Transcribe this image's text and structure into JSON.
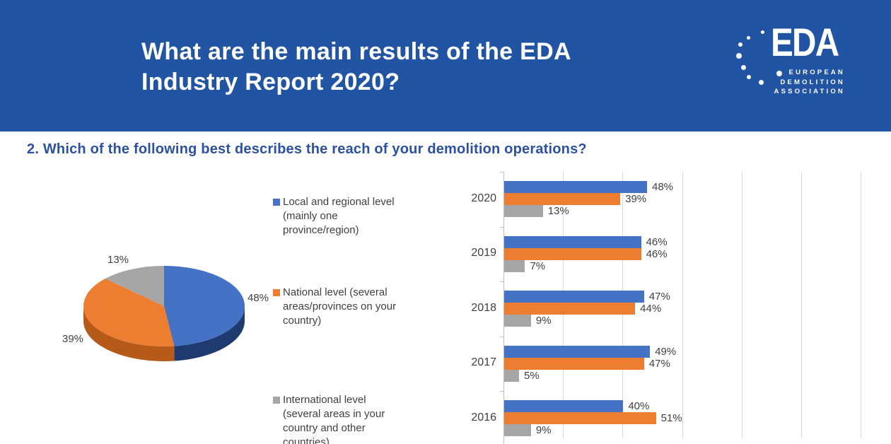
{
  "header": {
    "bg_color": "#2254A4",
    "title_lines": [
      "What are the main results of the EDA",
      "Industry Report 2020?"
    ],
    "logo": {
      "name": "EDA",
      "subtitle_lines": [
        "EUROPEAN",
        "DEMOLITION",
        "ASSOCIATION"
      ]
    }
  },
  "question": "2. Which of the following best describes the reach of your demolition operations?",
  "legend": {
    "items": [
      {
        "color": "#4472C4",
        "lines": [
          "Local and regional level",
          "(mainly one",
          "province/region)"
        ]
      },
      {
        "color": "#ED7D31",
        "lines": [
          "National level (several",
          "areas/provinces on your",
          "country)"
        ]
      },
      {
        "color": "#A6A6A6",
        "lines": [
          "International level",
          "(several areas in your",
          "country and other",
          "countries)"
        ]
      }
    ]
  },
  "chart_data": [
    {
      "type": "pie",
      "style": "3d",
      "title": "",
      "categories": [
        "Local and regional level (mainly one province/region)",
        "National level (several areas/provinces on your country)",
        "International level (several areas in your country and other countries)"
      ],
      "values": [
        48,
        39,
        13
      ],
      "labels": [
        "48%",
        "39%",
        "13%"
      ],
      "colors": [
        "#4472C4",
        "#ED7D31",
        "#A6A6A6"
      ],
      "side_colors": [
        "#1E3A6E",
        "#B55A19",
        "#7F7F7F"
      ],
      "start_angle_deg": 0,
      "direction": "clockwise",
      "legend_position": "right"
    },
    {
      "type": "bar",
      "orientation": "horizontal",
      "title": "",
      "categories": [
        "2020",
        "2019",
        "2018",
        "2017",
        "2016"
      ],
      "series": [
        {
          "name": "Local and regional level (mainly one province/region)",
          "color": "#4472C4",
          "values": [
            48,
            46,
            47,
            49,
            40
          ]
        },
        {
          "name": "National level (several areas/provinces on your country)",
          "color": "#ED7D31",
          "values": [
            39,
            46,
            44,
            47,
            51
          ]
        },
        {
          "name": "International level (several areas in your country and other countries)",
          "color": "#A6A6A6",
          "values": [
            13,
            7,
            9,
            5,
            9
          ]
        }
      ],
      "value_suffix": "%",
      "xlim": [
        0,
        120
      ],
      "gridline_step": 20,
      "grid": true,
      "axis_color": "#BFBFBF",
      "gridline_color": "#D9D9D9"
    }
  ]
}
